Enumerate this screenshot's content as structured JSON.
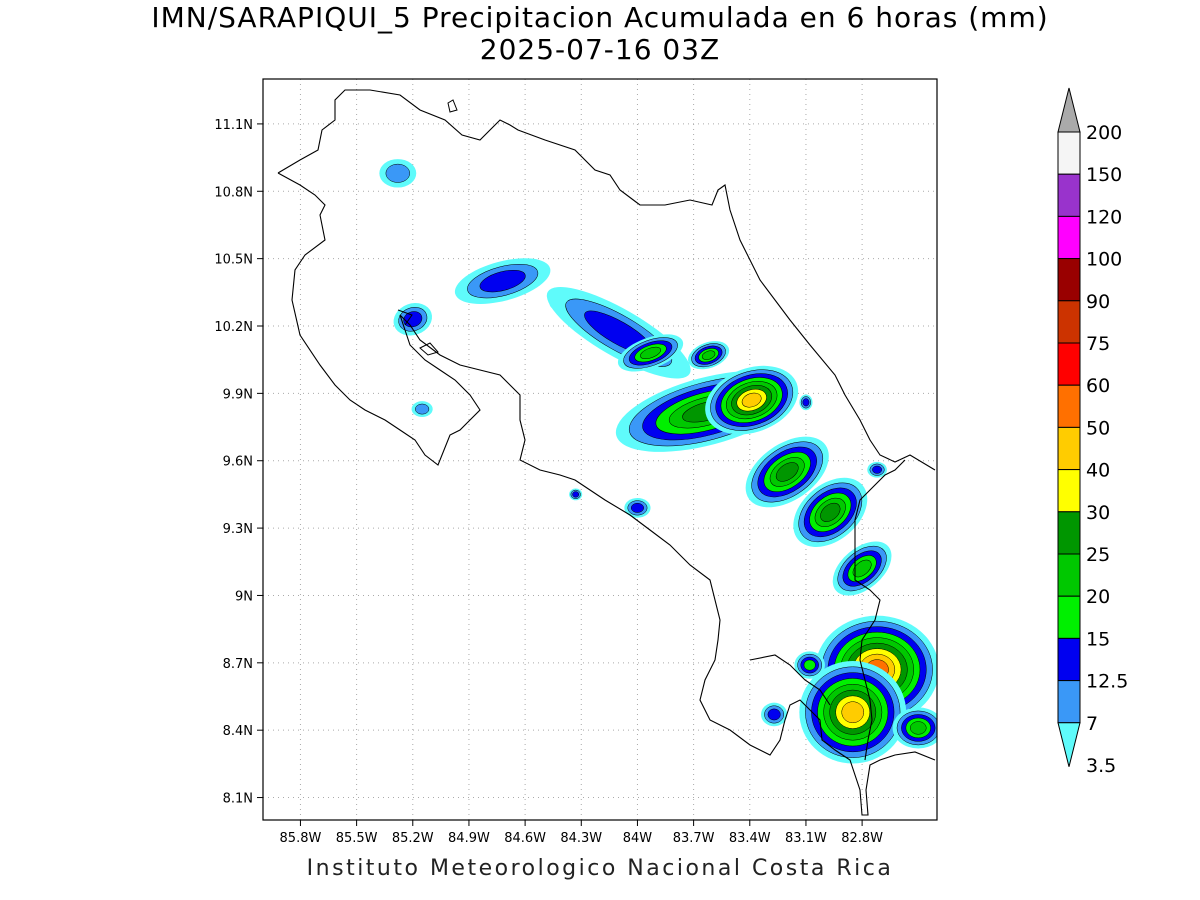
{
  "title": {
    "line1": "IMN/SARAPIQUI_5 Precipitacion Acumulada en 6 horas (mm)",
    "line2": "2025-07-16 03Z"
  },
  "footer": "Instituto Meteorologico Nacional Costa Rica",
  "map": {
    "lon_range": [
      -86.0,
      -82.4
    ],
    "lat_range": [
      8.0,
      11.3
    ],
    "lon_ticks": [
      {
        "value": -85.8,
        "label": "85.8W"
      },
      {
        "value": -85.5,
        "label": "85.5W"
      },
      {
        "value": -85.2,
        "label": "85.2W"
      },
      {
        "value": -84.9,
        "label": "84.9W"
      },
      {
        "value": -84.6,
        "label": "84.6W"
      },
      {
        "value": -84.3,
        "label": "84.3W"
      },
      {
        "value": -84.0,
        "label": "84W"
      },
      {
        "value": -83.7,
        "label": "83.7W"
      },
      {
        "value": -83.4,
        "label": "83.4W"
      },
      {
        "value": -83.1,
        "label": "83.1W"
      },
      {
        "value": -82.8,
        "label": "82.8W"
      }
    ],
    "lat_ticks": [
      {
        "value": 11.1,
        "label": "11.1N"
      },
      {
        "value": 10.8,
        "label": "10.8N"
      },
      {
        "value": 10.5,
        "label": "10.5N"
      },
      {
        "value": 10.2,
        "label": "10.2N"
      },
      {
        "value": 9.9,
        "label": "9.9N"
      },
      {
        "value": 9.6,
        "label": "9.6N"
      },
      {
        "value": 9.3,
        "label": "9.3N"
      },
      {
        "value": 9.0,
        "label": "9N"
      },
      {
        "value": 8.7,
        "label": "8.7N"
      },
      {
        "value": 8.4,
        "label": "8.4N"
      },
      {
        "value": 8.1,
        "label": "8.1N"
      }
    ],
    "grid": "dotted"
  },
  "colorbar": {
    "levels": [
      "3.5",
      "7",
      "12.5",
      "15",
      "20",
      "25",
      "30",
      "40",
      "50",
      "60",
      "75",
      "90",
      "100",
      "120",
      "150",
      "200"
    ],
    "colors": [
      "#5ffbfb",
      "#3a98f7",
      "#0000f0",
      "#00f000",
      "#00c800",
      "#009600",
      "#ffff00",
      "#ffcc00",
      "#ff7000",
      "#ff0000",
      "#cc3300",
      "#990000",
      "#ff00ff",
      "#9933cc",
      "#f5f5f5",
      "#aaaaaa"
    ]
  },
  "precip_cells": [
    {
      "lon": -85.28,
      "lat": 10.88,
      "rx": 0.07,
      "ry": 0.045,
      "level": 1,
      "rot": 0
    },
    {
      "lon": -85.2,
      "lat": 10.23,
      "rx": 0.06,
      "ry": 0.04,
      "level": 2,
      "rot": -20
    },
    {
      "lon": -85.15,
      "lat": 9.83,
      "rx": 0.04,
      "ry": 0.025,
      "level": 1,
      "rot": 0
    },
    {
      "lon": -84.72,
      "lat": 10.4,
      "rx": 0.15,
      "ry": 0.05,
      "level": 2,
      "rot": -15
    },
    {
      "lon": -84.4,
      "lat": 10.3,
      "rx": 0.04,
      "ry": 0.02,
      "level": 2,
      "rot": 0
    },
    {
      "lon": -84.1,
      "lat": 10.17,
      "rx": 0.25,
      "ry": 0.06,
      "level": 2,
      "rot": 30
    },
    {
      "lon": -83.93,
      "lat": 10.08,
      "rx": 0.08,
      "ry": 0.03,
      "level": 4,
      "rot": -20
    },
    {
      "lon": -83.62,
      "lat": 10.07,
      "rx": 0.05,
      "ry": 0.025,
      "level": 4,
      "rot": -20
    },
    {
      "lon": -84.0,
      "lat": 9.39,
      "rx": 0.04,
      "ry": 0.025,
      "level": 2,
      "rot": 0
    },
    {
      "lon": -84.33,
      "lat": 9.45,
      "rx": 0.02,
      "ry": 0.015,
      "level": 2,
      "rot": 0
    },
    {
      "lon": -83.63,
      "lat": 9.82,
      "rx": 0.2,
      "ry": 0.06,
      "level": 5,
      "rot": -15
    },
    {
      "lon": -83.39,
      "lat": 9.87,
      "rx": 0.09,
      "ry": 0.05,
      "level": 7,
      "rot": -20
    },
    {
      "lon": -83.2,
      "lat": 9.55,
      "rx": 0.1,
      "ry": 0.05,
      "level": 5,
      "rot": -35
    },
    {
      "lon": -82.97,
      "lat": 9.37,
      "rx": 0.09,
      "ry": 0.05,
      "level": 5,
      "rot": -40
    },
    {
      "lon": -82.8,
      "lat": 9.12,
      "rx": 0.08,
      "ry": 0.04,
      "level": 4,
      "rot": -40
    },
    {
      "lon": -82.72,
      "lat": 8.67,
      "rx": 0.11,
      "ry": 0.08,
      "level": 8,
      "rot": 0
    },
    {
      "lon": -82.85,
      "lat": 8.48,
      "rx": 0.1,
      "ry": 0.08,
      "level": 7,
      "rot": 0
    },
    {
      "lon": -83.08,
      "lat": 8.69,
      "rx": 0.04,
      "ry": 0.03,
      "level": 3,
      "rot": 0
    },
    {
      "lon": -83.27,
      "lat": 8.47,
      "rx": 0.04,
      "ry": 0.03,
      "level": 2,
      "rot": 0
    },
    {
      "lon": -82.5,
      "lat": 8.41,
      "rx": 0.06,
      "ry": 0.04,
      "level": 4,
      "rot": 0
    },
    {
      "lon": -83.1,
      "lat": 9.86,
      "rx": 0.02,
      "ry": 0.02,
      "level": 2,
      "rot": 0
    },
    {
      "lon": -82.72,
      "lat": 9.56,
      "rx": 0.03,
      "ry": 0.02,
      "level": 2,
      "rot": 0
    }
  ]
}
